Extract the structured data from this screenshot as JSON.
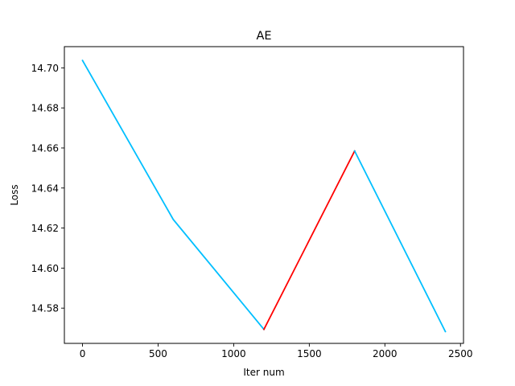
{
  "chart_data": {
    "type": "line",
    "title": "AE",
    "xlabel": "Iter num",
    "ylabel": "Loss",
    "xlim": [
      -120,
      2520
    ],
    "ylim": [
      14.5624,
      14.7106
    ],
    "xticks": [
      0,
      500,
      1000,
      1500,
      2000,
      2500
    ],
    "xtick_labels": [
      "0",
      "500",
      "1000",
      "1500",
      "2000",
      "2500"
    ],
    "yticks": [
      14.58,
      14.6,
      14.62,
      14.64,
      14.66,
      14.68,
      14.7
    ],
    "ytick_labels": [
      "14.58",
      "14.60",
      "14.62",
      "14.64",
      "14.66",
      "14.68",
      "14.70"
    ],
    "grid": false,
    "series": [
      {
        "color": "#00bfff",
        "x": [
          0,
          600,
          1200
        ],
        "y": [
          14.7037,
          14.6243,
          14.5694
        ]
      },
      {
        "color": "#ff0000",
        "x": [
          1200,
          1800
        ],
        "y": [
          14.5694,
          14.6585
        ]
      },
      {
        "color": "#00bfff",
        "x": [
          1800,
          2400
        ],
        "y": [
          14.6585,
          14.5683
        ]
      }
    ]
  }
}
